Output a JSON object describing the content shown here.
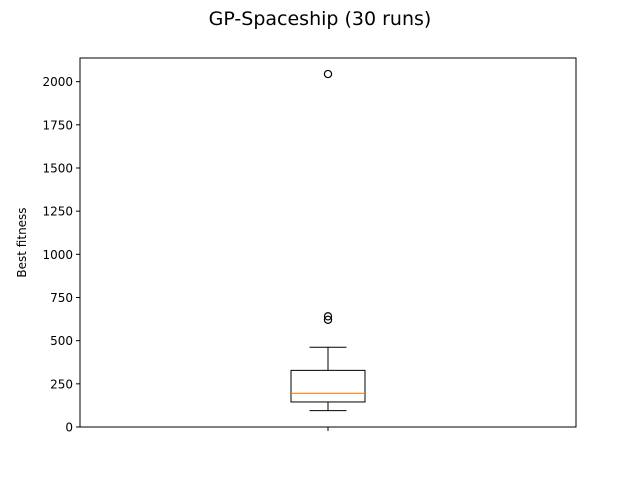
{
  "chart_data": {
    "type": "box",
    "title": "GP-Spaceship (30 runs)",
    "xlabel": "",
    "ylabel": "Best fitness",
    "ylim": [
      0,
      2137
    ],
    "yticks": [
      0,
      250,
      500,
      750,
      1000,
      1250,
      1500,
      1750,
      2000
    ],
    "ytick_labels": [
      "0",
      "250",
      "500",
      "750",
      "1000",
      "1250",
      "1500",
      "1750",
      "2000"
    ],
    "grid": false,
    "boxes": [
      {
        "whisker_low": 95,
        "q1": 145,
        "median": 195,
        "q3": 328,
        "whisker_high": 462,
        "outliers": [
          2044,
          641,
          621
        ]
      }
    ],
    "colors": {
      "box": "#000000",
      "median": "#ff7f0e",
      "outlier_edge": "#000000"
    }
  }
}
